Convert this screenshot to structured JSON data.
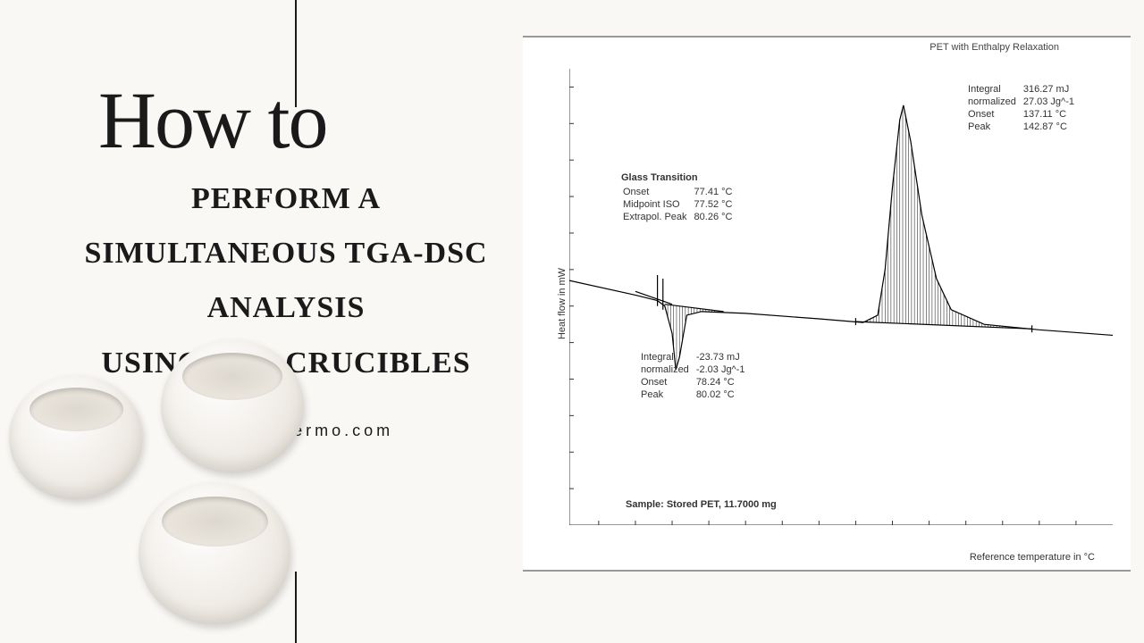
{
  "left": {
    "howto": "How to",
    "line1": "PERFORM A",
    "line2": "SIMULTANEOUS TGA-DSC",
    "line3": "ANALYSIS",
    "line4": "USING TGA CRUCIBLES",
    "email": "info@redthermo.com"
  },
  "chart": {
    "title": "PET with Enthalpy Relaxation",
    "ylabel": "Heat flow in mW",
    "xlabel": "Reference temperature in °C",
    "xlim": [
      52,
      200
    ],
    "ylim": [
      -18,
      7
    ],
    "xticks": [
      60,
      70,
      80,
      90,
      100,
      110,
      120,
      130,
      140,
      150,
      160,
      170,
      180,
      190
    ],
    "yticks": [
      -18,
      -16,
      -14,
      -12,
      -10,
      -8,
      -6,
      -4,
      -2,
      0,
      2,
      4,
      6
    ],
    "baseline": [
      [
        52,
        -4.6
      ],
      [
        70,
        -5.4
      ],
      [
        76,
        -5.7
      ],
      [
        78,
        -6.0
      ],
      [
        80,
        -7.5
      ],
      [
        81,
        -9.5
      ],
      [
        82,
        -8.8
      ],
      [
        84,
        -6.5
      ],
      [
        88,
        -6.3
      ],
      [
        100,
        -6.4
      ],
      [
        120,
        -6.7
      ],
      [
        132,
        -6.9
      ],
      [
        136,
        -6.5
      ],
      [
        138,
        -4.0
      ],
      [
        140,
        0.5
      ],
      [
        142,
        4.2
      ],
      [
        143,
        5.0
      ],
      [
        145,
        3.0
      ],
      [
        148,
        -1.0
      ],
      [
        152,
        -4.5
      ],
      [
        156,
        -6.2
      ],
      [
        165,
        -7.0
      ],
      [
        180,
        -7.3
      ],
      [
        200,
        -7.6
      ]
    ],
    "glass_endo": {
      "x_range": [
        78,
        94
      ],
      "base": [
        [
          78,
          -5.9
        ],
        [
          94,
          -6.3
        ]
      ]
    },
    "melt_peak": {
      "x_range": [
        130,
        178
      ],
      "base": [
        [
          130,
          -6.85
        ],
        [
          178,
          -7.25
        ]
      ]
    },
    "anno_glass": {
      "title": "Glass Transition",
      "rows": [
        [
          "Onset",
          "77.41 °C"
        ],
        [
          "Midpoint ISO",
          "77.52 °C"
        ],
        [
          "Extrapol. Peak",
          "80.26 °C"
        ]
      ]
    },
    "anno_endo": {
      "rows": [
        [
          "Integral",
          "-23.73 mJ"
        ],
        [
          "  normalized",
          "-2.03 Jg^-1"
        ],
        [
          "Onset",
          "78.24 °C"
        ],
        [
          "Peak",
          "80.02 °C"
        ]
      ]
    },
    "anno_melt": {
      "rows": [
        [
          "Integral",
          "316.27 mJ"
        ],
        [
          "  normalized",
          "27.03 Jg^-1"
        ],
        [
          "Onset",
          "137.11 °C"
        ],
        [
          "Peak",
          "142.87 °C"
        ]
      ]
    },
    "sample": "Sample: Stored PET, 11.7000 mg",
    "colors": {
      "bg": "#ffffff",
      "axis": "#333333",
      "curve": "#000000",
      "hatch": "#333333"
    }
  }
}
